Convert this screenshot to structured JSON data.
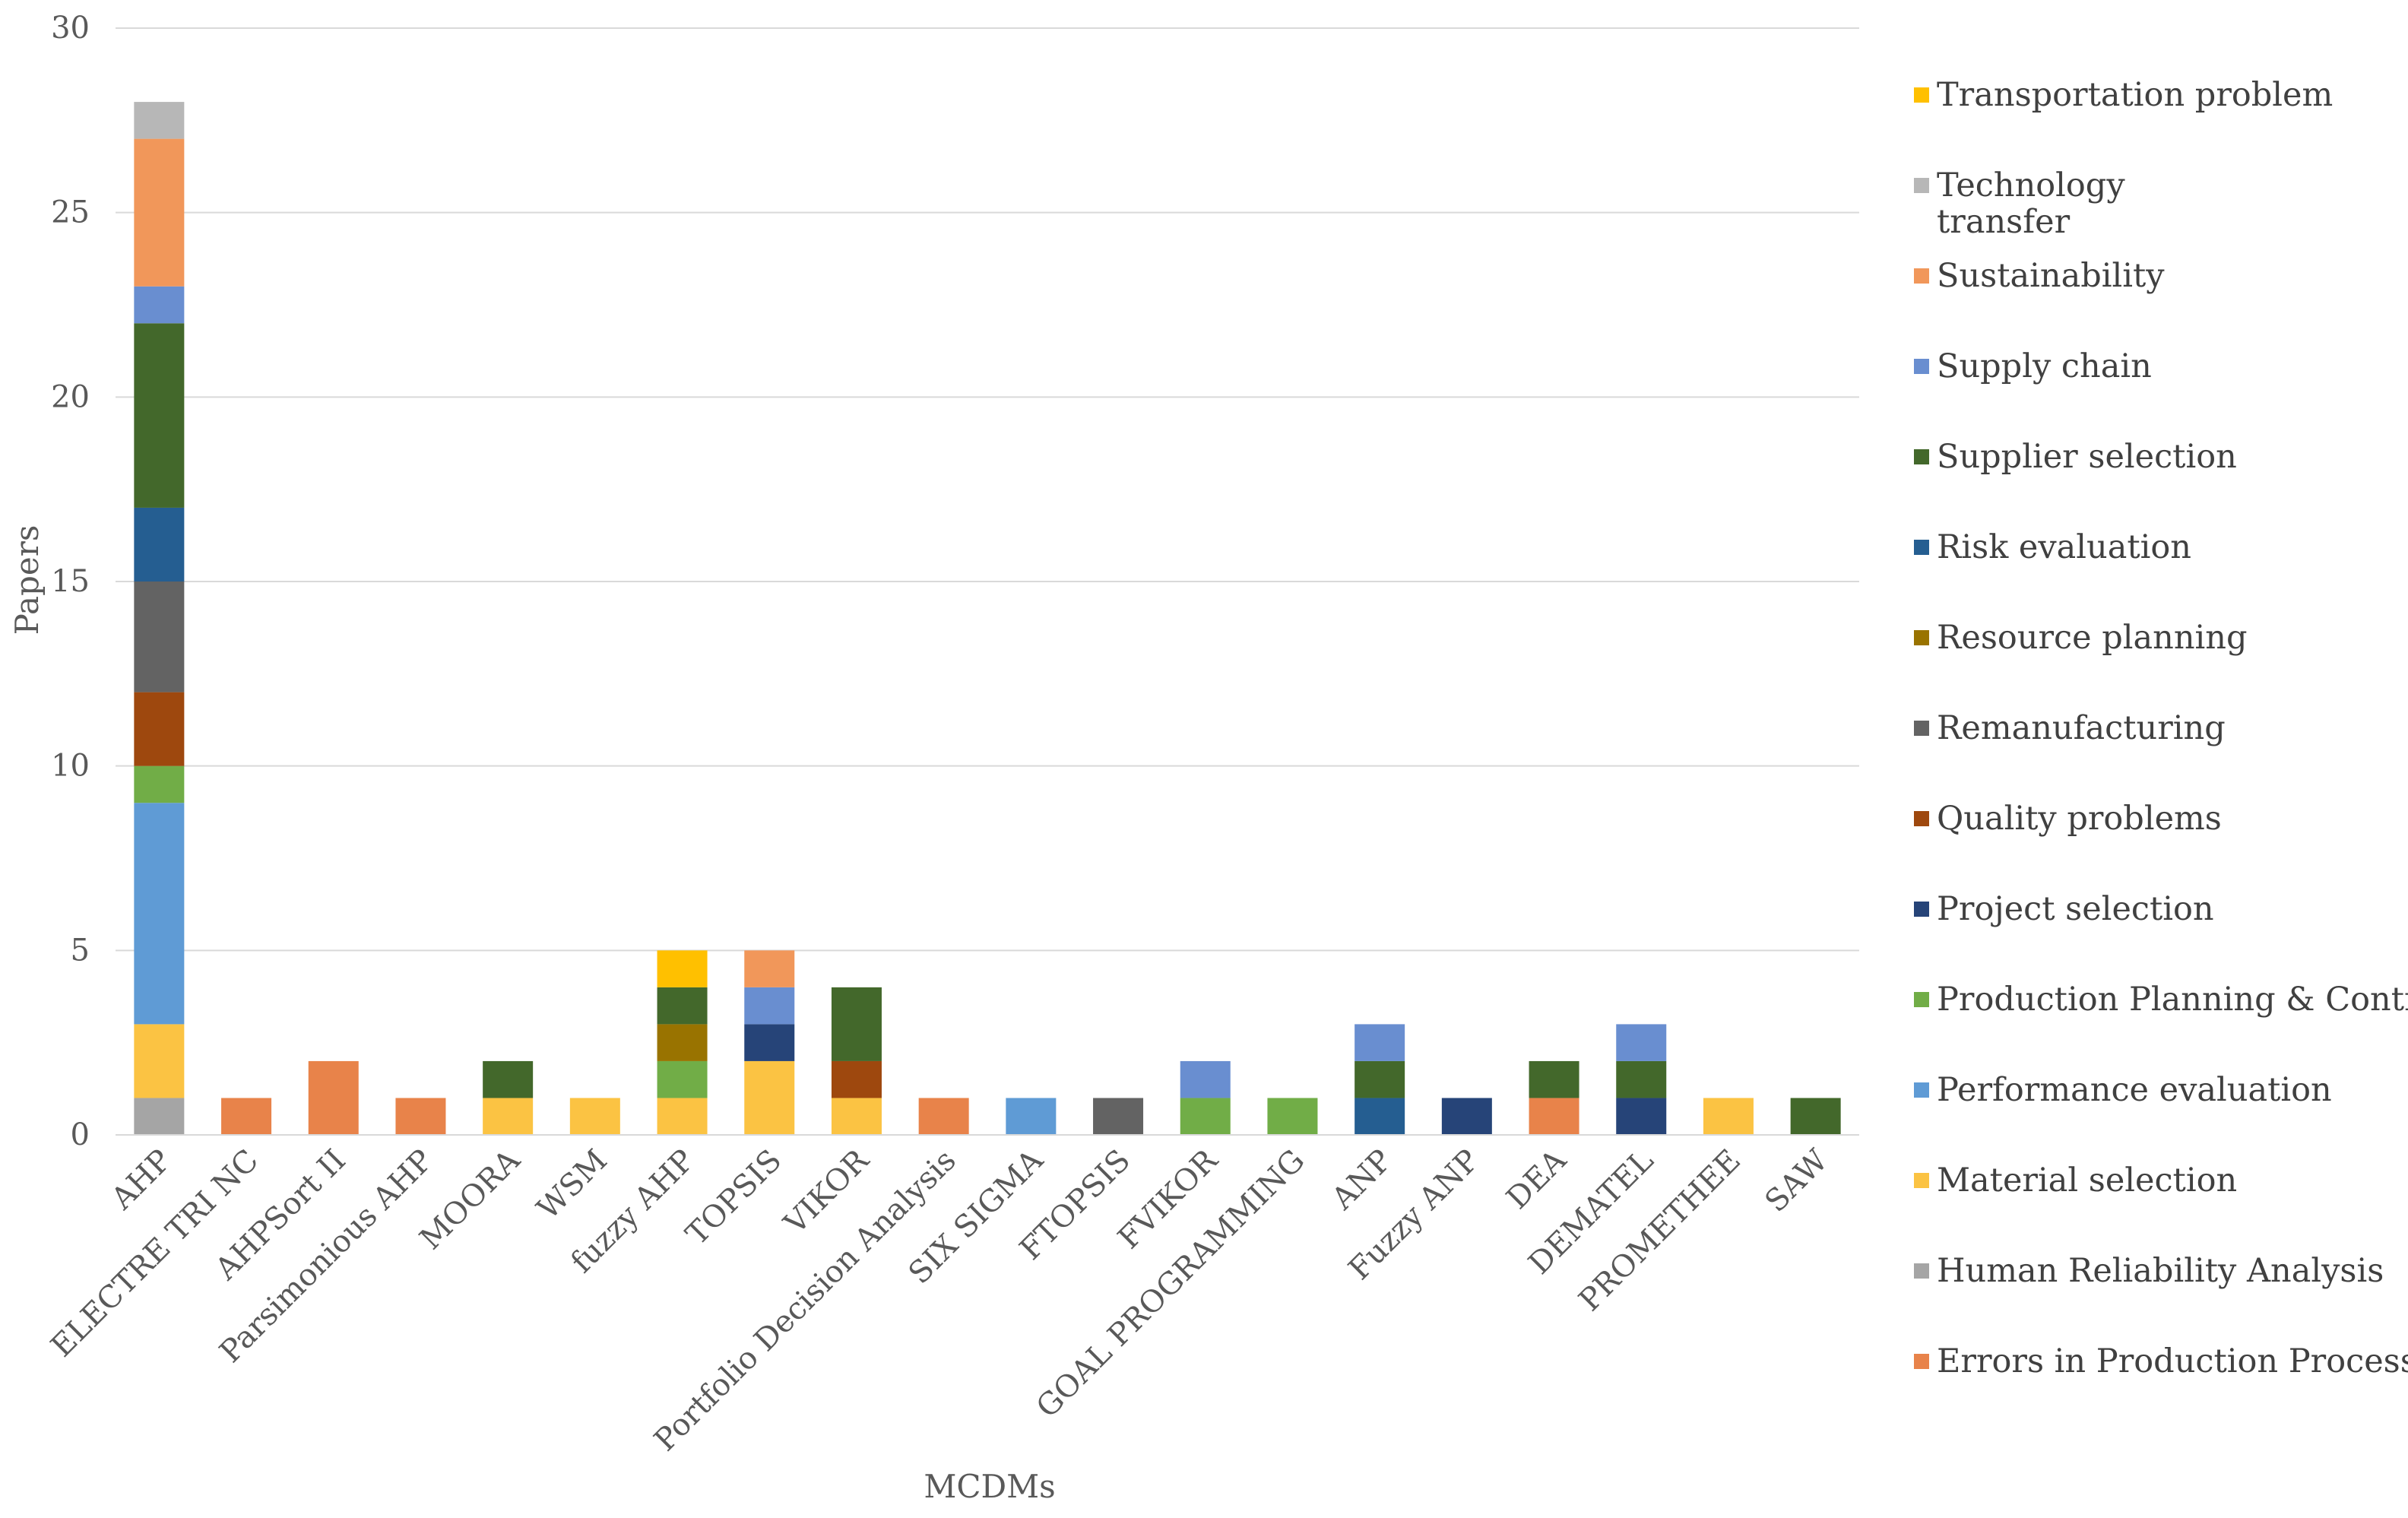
{
  "chart_data": {
    "type": "stacked-bar",
    "title": "",
    "xlabel": "MCDMs",
    "ylabel": "Papers",
    "ylim": [
      0,
      30
    ],
    "yticks": [
      0,
      5,
      10,
      15,
      20,
      25,
      30
    ],
    "grid": true,
    "legend_position": "right",
    "categories": [
      "AHP",
      "ELECTRE TRI NC",
      "AHPSort II",
      "Parsimonious AHP",
      "MOORA",
      "WSM",
      "fuzzy AHP",
      "TOPSIS",
      "VIKOR",
      "Portfolio Decision Analysis",
      "SIX SIGMA",
      "FTOPSIS",
      "FVIKOR",
      "GOAL PROGRAMMING",
      "ANP",
      "Fuzzy ANP",
      "DEA",
      "DEMATEL",
      "PROMETHEE",
      "SAW"
    ],
    "series": [
      {
        "name": "Errors in Production Process",
        "color": "#E8834A",
        "values": [
          0,
          1,
          2,
          1,
          0,
          0,
          0,
          0,
          0,
          1,
          0,
          0,
          0,
          0,
          0,
          0,
          1,
          0,
          0,
          0
        ]
      },
      {
        "name": "Human Reliability Analysis",
        "color": "#A5A5A5",
        "values": [
          1,
          0,
          0,
          0,
          0,
          0,
          0,
          0,
          0,
          0,
          0,
          0,
          0,
          0,
          0,
          0,
          0,
          0,
          0,
          0
        ]
      },
      {
        "name": "Material selection",
        "color": "#FBC343",
        "values": [
          2,
          0,
          0,
          0,
          1,
          1,
          1,
          2,
          1,
          0,
          0,
          0,
          0,
          0,
          0,
          0,
          0,
          0,
          1,
          0
        ]
      },
      {
        "name": "Performance evaluation",
        "color": "#5F9BD5",
        "values": [
          6,
          0,
          0,
          0,
          0,
          0,
          0,
          0,
          0,
          0,
          1,
          0,
          0,
          0,
          0,
          0,
          0,
          0,
          0,
          0
        ]
      },
      {
        "name": "Production Planning & Control",
        "color": "#71AD47",
        "values": [
          1,
          0,
          0,
          0,
          0,
          0,
          1,
          0,
          0,
          0,
          0,
          0,
          1,
          1,
          0,
          0,
          0,
          0,
          0,
          0
        ]
      },
      {
        "name": "Project selection",
        "color": "#264478",
        "values": [
          0,
          0,
          0,
          0,
          0,
          0,
          0,
          1,
          0,
          0,
          0,
          0,
          0,
          0,
          0,
          1,
          0,
          1,
          0,
          0
        ]
      },
      {
        "name": "Quality problems",
        "color": "#9E480E",
        "values": [
          2,
          0,
          0,
          0,
          0,
          0,
          0,
          0,
          1,
          0,
          0,
          0,
          0,
          0,
          0,
          0,
          0,
          0,
          0,
          0
        ]
      },
      {
        "name": "Remanufacturing",
        "color": "#636363",
        "values": [
          3,
          0,
          0,
          0,
          0,
          0,
          0,
          0,
          0,
          0,
          0,
          1,
          0,
          0,
          0,
          0,
          0,
          0,
          0,
          0
        ]
      },
      {
        "name": "Resource planning",
        "color": "#997300",
        "values": [
          0,
          0,
          0,
          0,
          0,
          0,
          1,
          0,
          0,
          0,
          0,
          0,
          0,
          0,
          0,
          0,
          0,
          0,
          0,
          0
        ]
      },
      {
        "name": "Risk evaluation",
        "color": "#255E91",
        "values": [
          2,
          0,
          0,
          0,
          0,
          0,
          0,
          0,
          0,
          0,
          0,
          0,
          0,
          0,
          1,
          0,
          0,
          0,
          0,
          0
        ]
      },
      {
        "name": "Supplier selection",
        "color": "#43682B",
        "values": [
          5,
          0,
          0,
          0,
          1,
          0,
          1,
          0,
          2,
          0,
          0,
          0,
          0,
          0,
          1,
          0,
          1,
          1,
          0,
          1
        ]
      },
      {
        "name": "Supply chain",
        "color": "#698ED0",
        "values": [
          1,
          0,
          0,
          0,
          0,
          0,
          0,
          1,
          0,
          0,
          0,
          0,
          1,
          0,
          1,
          0,
          0,
          1,
          0,
          0
        ]
      },
      {
        "name": "Sustainability",
        "color": "#F1975A",
        "values": [
          4,
          0,
          0,
          0,
          0,
          0,
          0,
          1,
          0,
          0,
          0,
          0,
          0,
          0,
          0,
          0,
          0,
          0,
          0,
          0
        ]
      },
      {
        "name": "Technology transfer",
        "color": "#B7B7B7",
        "values": [
          1,
          0,
          0,
          0,
          0,
          0,
          0,
          0,
          0,
          0,
          0,
          0,
          0,
          0,
          0,
          0,
          0,
          0,
          0,
          0
        ]
      },
      {
        "name": "Transportation problem",
        "color": "#FFC000",
        "values": [
          0,
          0,
          0,
          0,
          0,
          0,
          1,
          0,
          0,
          0,
          0,
          0,
          0,
          0,
          0,
          0,
          0,
          0,
          0,
          0
        ]
      }
    ],
    "legend_order": [
      "Transportation problem",
      "Technology transfer",
      "Sustainability",
      "Supply chain",
      "Supplier selection",
      "Risk evaluation",
      "Resource planning",
      "Remanufacturing",
      "Quality problems",
      "Project selection",
      "Production Planning & Control",
      "Performance evaluation",
      "Material selection",
      "Human Reliability Analysis",
      "Errors in Production Process"
    ]
  }
}
